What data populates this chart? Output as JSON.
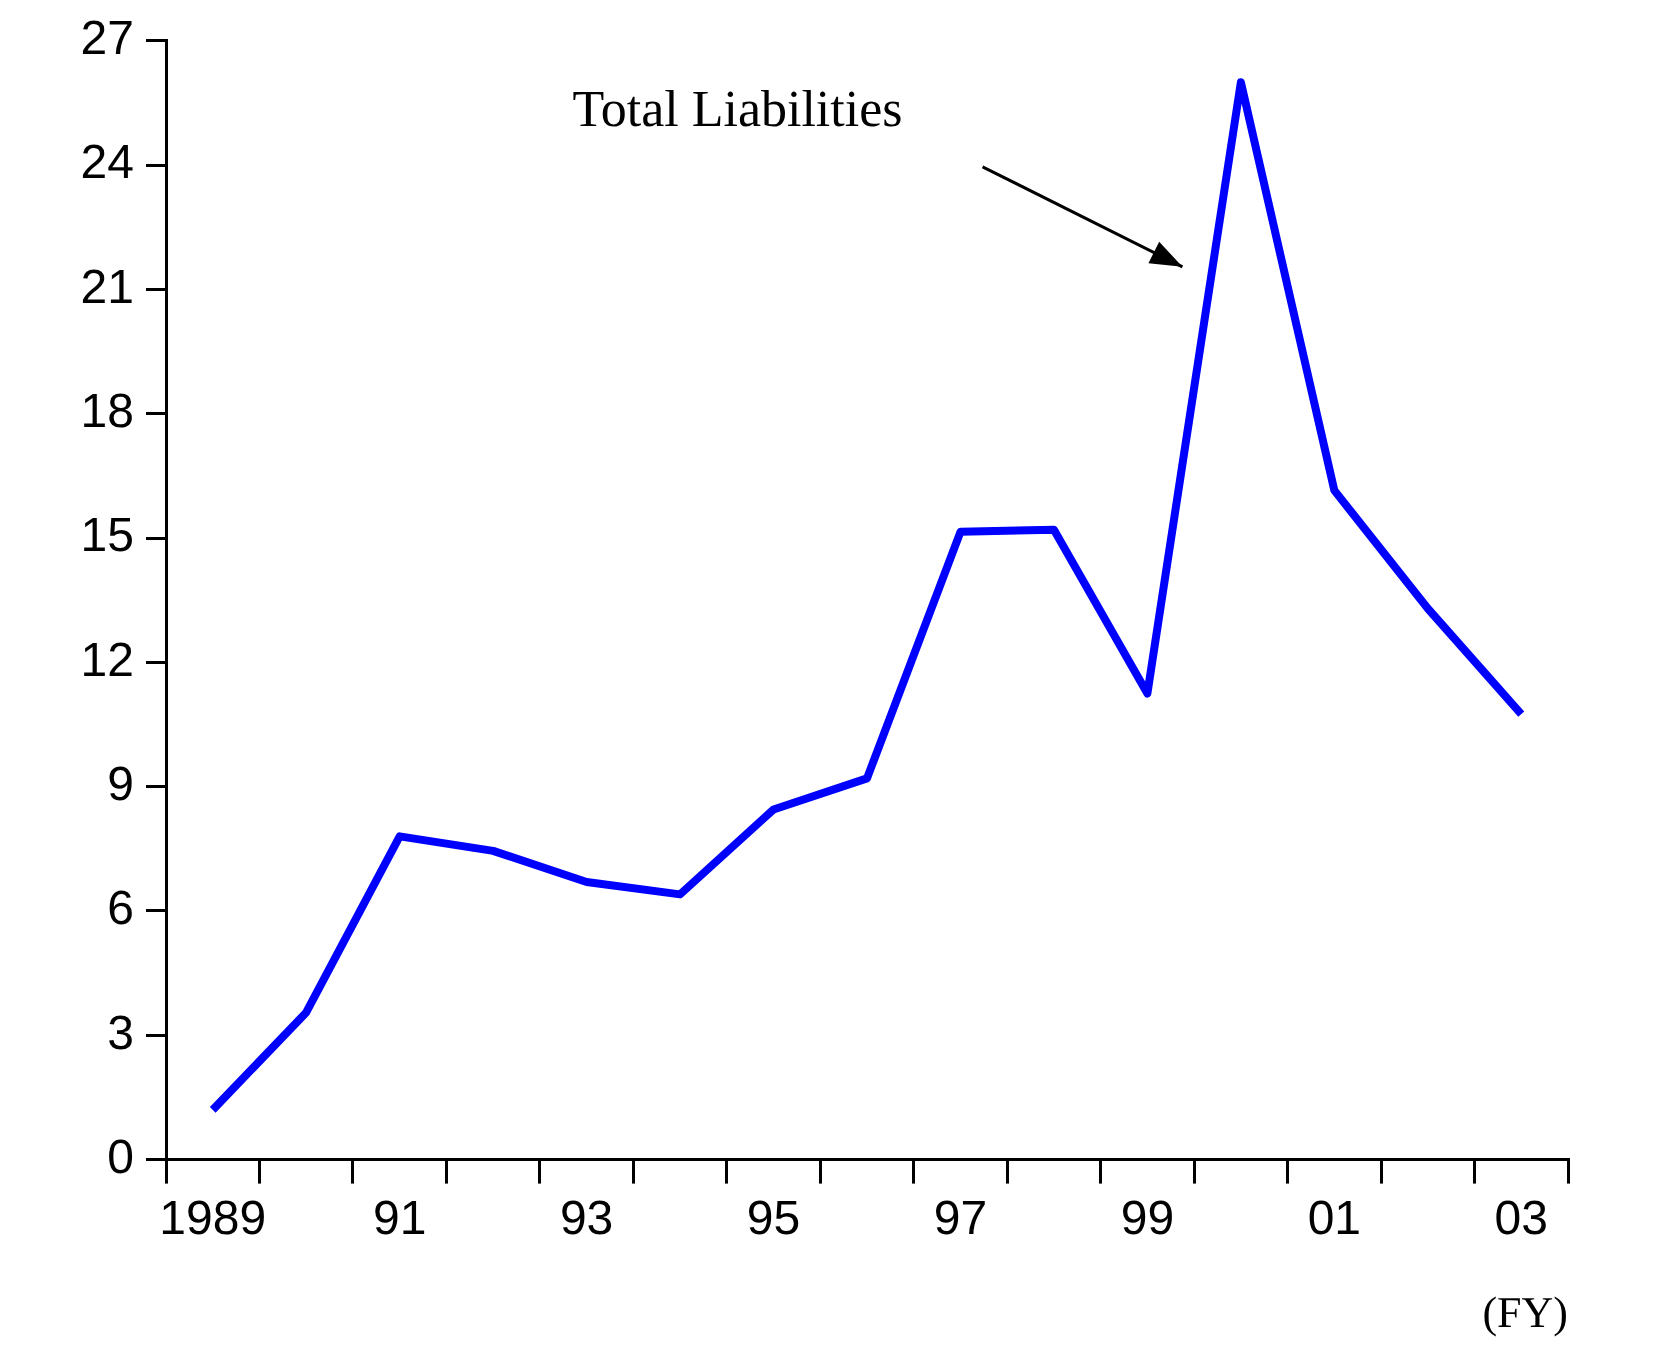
{
  "chart_data": {
    "type": "line",
    "xlabel": "(FY)",
    "categories": [
      "1989",
      null,
      "91",
      null,
      "93",
      null,
      "95",
      null,
      "97",
      null,
      "99",
      null,
      "01",
      null,
      "03"
    ],
    "series": [
      {
        "name": "Total Liabilities",
        "color": "#0000ff",
        "values": [
          1.2,
          3.55,
          7.8,
          7.45,
          6.7,
          6.4,
          8.45,
          9.2,
          15.15,
          15.2,
          11.25,
          26,
          16.15,
          13.3,
          10.75
        ]
      }
    ],
    "ylim": [
      0,
      27
    ],
    "yticks": [
      0,
      3,
      6,
      9,
      12,
      15,
      18,
      21,
      24,
      27
    ],
    "grid": false,
    "legend": false,
    "marker": "none",
    "line_style": "solid"
  }
}
